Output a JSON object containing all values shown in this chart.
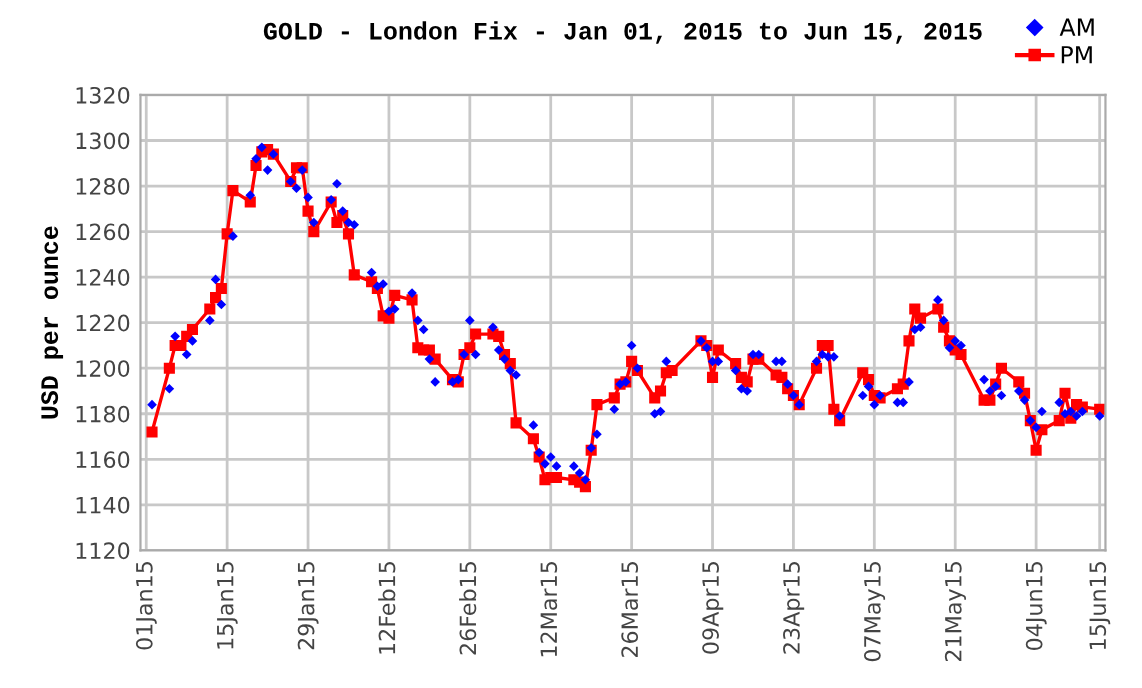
{
  "chart_data": {
    "type": "line",
    "title": "GOLD - London Fix - Jan 01, 2015 to Jun 15, 2015",
    "ylabel": "USD per ounce",
    "xlim": [
      "2014-12-31",
      "2015-06-16"
    ],
    "xticks": [
      {
        "value": "2015-01-01",
        "label": "01Jan15"
      },
      {
        "value": "2015-01-15",
        "label": "15Jan15"
      },
      {
        "value": "2015-01-29",
        "label": "29Jan15"
      },
      {
        "value": "2015-02-12",
        "label": "12Feb15"
      },
      {
        "value": "2015-02-26",
        "label": "26Feb15"
      },
      {
        "value": "2015-03-12",
        "label": "12Mar15"
      },
      {
        "value": "2015-03-26",
        "label": "26Mar15"
      },
      {
        "value": "2015-04-09",
        "label": "09Apr15"
      },
      {
        "value": "2015-04-23",
        "label": "23Apr15"
      },
      {
        "value": "2015-05-07",
        "label": "07May15"
      },
      {
        "value": "2015-05-21",
        "label": "21May15"
      },
      {
        "value": "2015-06-04",
        "label": "04Jun15"
      },
      {
        "value": "2015-06-15",
        "label": "15Jun15"
      }
    ],
    "ylim": [
      1120,
      1320
    ],
    "yticks": [
      1120,
      1140,
      1160,
      1180,
      1200,
      1220,
      1240,
      1260,
      1280,
      1300,
      1320
    ],
    "grid": true,
    "legend": "top right",
    "series": [
      {
        "name": "AM",
        "type": "scatter",
        "marker": "diamond",
        "color": "#0000ff",
        "x": [
          "2015-01-02",
          "2015-01-05",
          "2015-01-06",
          "2015-01-08",
          "2015-01-09",
          "2015-01-12",
          "2015-01-13",
          "2015-01-14",
          "2015-01-16",
          "2015-01-19",
          "2015-01-20",
          "2015-01-21",
          "2015-01-22",
          "2015-01-23",
          "2015-01-26",
          "2015-01-27",
          "2015-01-28",
          "2015-01-29",
          "2015-01-30",
          "2015-02-02",
          "2015-02-03",
          "2015-02-04",
          "2015-02-05",
          "2015-02-06",
          "2015-02-09",
          "2015-02-10",
          "2015-02-11",
          "2015-02-12",
          "2015-02-13",
          "2015-02-16",
          "2015-02-17",
          "2015-02-18",
          "2015-02-19",
          "2015-02-20",
          "2015-02-23",
          "2015-02-24",
          "2015-02-25",
          "2015-02-26",
          "2015-02-27",
          "2015-03-02",
          "2015-03-03",
          "2015-03-04",
          "2015-03-05",
          "2015-03-06",
          "2015-03-09",
          "2015-03-10",
          "2015-03-11",
          "2015-03-12",
          "2015-03-13",
          "2015-03-16",
          "2015-03-17",
          "2015-03-18",
          "2015-03-19",
          "2015-03-20",
          "2015-03-23",
          "2015-03-24",
          "2015-03-25",
          "2015-03-26",
          "2015-03-27",
          "2015-03-30",
          "2015-03-31",
          "2015-04-01",
          "2015-04-07",
          "2015-04-08",
          "2015-04-09",
          "2015-04-10",
          "2015-04-13",
          "2015-04-14",
          "2015-04-15",
          "2015-04-16",
          "2015-04-17",
          "2015-04-20",
          "2015-04-21",
          "2015-04-22",
          "2015-04-23",
          "2015-04-24",
          "2015-04-27",
          "2015-04-28",
          "2015-04-29",
          "2015-04-30",
          "2015-05-01",
          "2015-05-05",
          "2015-05-06",
          "2015-05-07",
          "2015-05-08",
          "2015-05-11",
          "2015-05-12",
          "2015-05-13",
          "2015-05-14",
          "2015-05-15",
          "2015-05-18",
          "2015-05-19",
          "2015-05-20",
          "2015-05-21",
          "2015-05-22",
          "2015-05-26",
          "2015-05-27",
          "2015-05-28",
          "2015-05-29",
          "2015-06-01",
          "2015-06-02",
          "2015-06-03",
          "2015-06-04",
          "2015-06-05",
          "2015-06-08",
          "2015-06-09",
          "2015-06-10",
          "2015-06-11",
          "2015-06-12",
          "2015-06-15"
        ],
        "values": [
          1184,
          1191,
          1214,
          1206,
          1212,
          1221,
          1239,
          1228,
          1258,
          1276,
          1292,
          1297,
          1287,
          1294,
          1282,
          1279,
          1287,
          1275,
          1264,
          1274,
          1281,
          1269,
          1264,
          1263,
          1242,
          1236,
          1237,
          1225,
          1226,
          1233,
          1221,
          1217,
          1204,
          1194,
          1194,
          1195,
          1206,
          1221,
          1206,
          1218,
          1208,
          1204,
          1199,
          1197,
          1175,
          1163,
          1158,
          1161,
          1157,
          1157,
          1154,
          1151,
          1165,
          1171,
          1182,
          1193,
          1194,
          1210,
          1200,
          1180,
          1181,
          1203,
          1212,
          1209,
          1203,
          1203,
          1199,
          1191,
          1190,
          1206,
          1206,
          1203,
          1203,
          1193,
          1188,
          1184,
          1203,
          1206,
          1205,
          1205,
          1179,
          1188,
          1192,
          1184,
          1188,
          1185,
          1185,
          1194,
          1217,
          1218,
          1230,
          1221,
          1209,
          1212,
          1210,
          1195,
          1190,
          1192,
          1188,
          1190,
          1186,
          1177,
          1174,
          1181,
          1185,
          1180,
          1181,
          1179,
          1181,
          1179
        ]
      },
      {
        "name": "PM",
        "marker": "square",
        "line_style": "solid",
        "color": "#ff0000",
        "x": [
          "2015-01-02",
          "2015-01-05",
          "2015-01-06",
          "2015-01-07",
          "2015-01-08",
          "2015-01-09",
          "2015-01-12",
          "2015-01-13",
          "2015-01-14",
          "2015-01-15",
          "2015-01-16",
          "2015-01-19",
          "2015-01-20",
          "2015-01-21",
          "2015-01-22",
          "2015-01-23",
          "2015-01-26",
          "2015-01-27",
          "2015-01-28",
          "2015-01-29",
          "2015-01-30",
          "2015-02-02",
          "2015-02-03",
          "2015-02-04",
          "2015-02-05",
          "2015-02-06",
          "2015-02-09",
          "2015-02-10",
          "2015-02-11",
          "2015-02-12",
          "2015-02-13",
          "2015-02-16",
          "2015-02-17",
          "2015-02-18",
          "2015-02-19",
          "2015-02-20",
          "2015-02-23",
          "2015-02-24",
          "2015-02-25",
          "2015-02-26",
          "2015-02-27",
          "2015-03-02",
          "2015-03-03",
          "2015-03-04",
          "2015-03-05",
          "2015-03-06",
          "2015-03-09",
          "2015-03-10",
          "2015-03-11",
          "2015-03-12",
          "2015-03-13",
          "2015-03-16",
          "2015-03-17",
          "2015-03-18",
          "2015-03-19",
          "2015-03-20",
          "2015-03-23",
          "2015-03-24",
          "2015-03-25",
          "2015-03-26",
          "2015-03-27",
          "2015-03-30",
          "2015-03-31",
          "2015-04-01",
          "2015-04-02",
          "2015-04-07",
          "2015-04-08",
          "2015-04-09",
          "2015-04-10",
          "2015-04-13",
          "2015-04-14",
          "2015-04-15",
          "2015-04-16",
          "2015-04-17",
          "2015-04-20",
          "2015-04-21",
          "2015-04-22",
          "2015-04-23",
          "2015-04-24",
          "2015-04-27",
          "2015-04-28",
          "2015-04-29",
          "2015-04-30",
          "2015-05-01",
          "2015-05-05",
          "2015-05-06",
          "2015-05-07",
          "2015-05-08",
          "2015-05-11",
          "2015-05-12",
          "2015-05-13",
          "2015-05-14",
          "2015-05-15",
          "2015-05-18",
          "2015-05-19",
          "2015-05-20",
          "2015-05-21",
          "2015-05-22",
          "2015-05-26",
          "2015-05-27",
          "2015-05-28",
          "2015-05-29",
          "2015-06-01",
          "2015-06-02",
          "2015-06-03",
          "2015-06-04",
          "2015-06-05",
          "2015-06-08",
          "2015-06-09",
          "2015-06-10",
          "2015-06-11",
          "2015-06-12",
          "2015-06-15"
        ],
        "values": [
          1172,
          1200,
          1210,
          1210,
          1214,
          1217,
          1226,
          1231,
          1235,
          1259,
          1278,
          1273,
          1289,
          1295,
          1296,
          1294,
          1282,
          1288,
          1288,
          1269,
          1260,
          1273,
          1264,
          1267,
          1259,
          1241,
          1238,
          1235,
          1223,
          1222,
          1232,
          1230,
          1209,
          1208,
          1208,
          1204,
          1195,
          1194,
          1206,
          1209,
          1215,
          1215,
          1214,
          1206,
          1202,
          1176,
          1169,
          1161,
          1151,
          1152,
          1152,
          1151,
          1150,
          1148,
          1164,
          1184,
          1187,
          1193,
          1194,
          1203,
          1199,
          1187,
          1190,
          1198,
          1199,
          1212,
          1210,
          1196,
          1208,
          1202,
          1196,
          1194,
          1204,
          1204,
          1197,
          1196,
          1191,
          1188,
          1184,
          1200,
          1210,
          1210,
          1182,
          1177,
          1198,
          1195,
          1188,
          1187,
          1191,
          1193,
          1212,
          1226,
          1222,
          1226,
          1218,
          1212,
          1208,
          1206,
          1186,
          1186,
          1193,
          1200,
          1194,
          1189,
          1177,
          1164,
          1173,
          1177,
          1189,
          1178,
          1184,
          1183,
          1182
        ]
      }
    ]
  }
}
